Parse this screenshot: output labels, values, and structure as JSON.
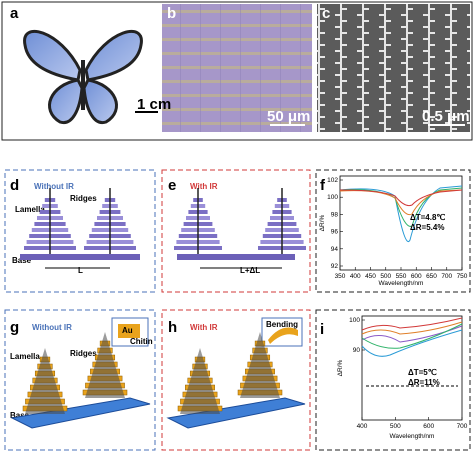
{
  "panels": [
    {
      "label": "a",
      "scale_bar": "1 cm"
    },
    {
      "label": "b",
      "scale_bar": "50 μm"
    },
    {
      "label": "c",
      "scale_bar": "0.5 μm"
    },
    {
      "label": "d",
      "title": "Without IR",
      "lamella": "Lamella",
      "ridges": "Ridges",
      "base": "Base",
      "length": "L"
    },
    {
      "label": "e",
      "title": "With IR",
      "length": "L+ΔL"
    },
    {
      "label": "f",
      "y_axis_label": "ΔR/%",
      "x_axis_label": "Wavelength/nm",
      "yticks": [
        102,
        100,
        98,
        96,
        94,
        92
      ],
      "xticks": [
        350,
        400,
        450,
        500,
        550,
        600,
        650,
        700,
        750
      ],
      "annotations": [
        "ΔT=4.8℃",
        "ΔR=5.4%"
      ]
    },
    {
      "label": "g",
      "title": "Without IR",
      "lamella": "Lamella",
      "ridges": "Ridges",
      "base": "Base",
      "inset_top": "Au",
      "inset_bottom": "Chitin"
    },
    {
      "label": "h",
      "title": "With IR",
      "inset": "Bending"
    },
    {
      "label": "i",
      "y_axis_label": "ΔR/%",
      "x_axis_label": "Wavelength/nm",
      "yticks": [
        100,
        90
      ],
      "xticks": [
        400,
        500,
        600,
        700
      ],
      "annotations": [
        "ΔT=5℃",
        "ΔR=11%"
      ]
    }
  ]
}
